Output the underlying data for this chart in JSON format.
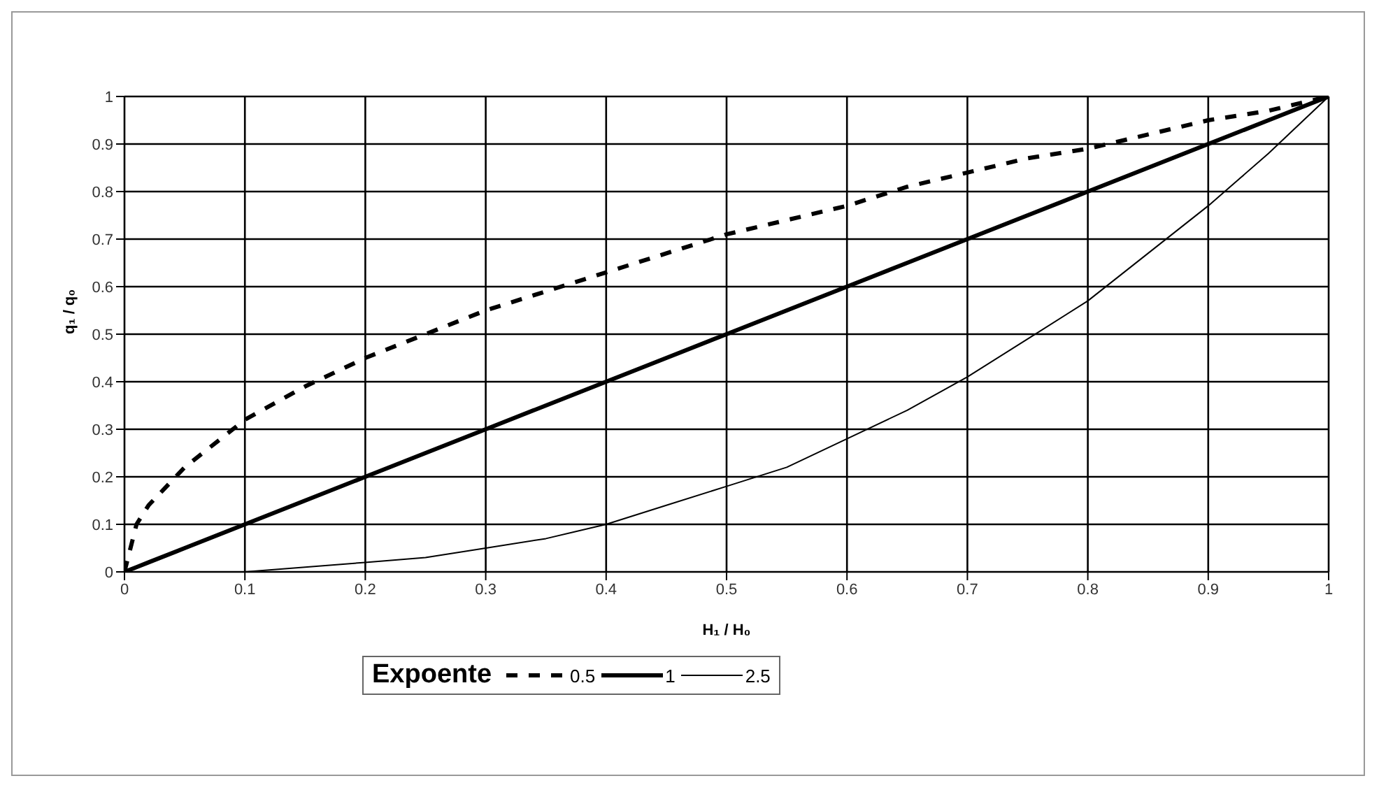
{
  "chart_data": {
    "type": "line",
    "xlabel": "H₁ / H₀",
    "ylabel": "q₁ / q₀",
    "legend_title": "Expoente",
    "legend": "bottom",
    "grid": true,
    "marker": "none",
    "x": [
      0,
      0.01,
      0.02,
      0.05,
      0.1,
      0.15,
      0.2,
      0.25,
      0.3,
      0.35,
      0.4,
      0.45,
      0.5,
      0.55,
      0.6,
      0.65,
      0.7,
      0.75,
      0.8,
      0.85,
      0.9,
      0.95,
      1
    ],
    "xlim": [
      0,
      1
    ],
    "xticks": [
      0,
      0.1,
      0.2,
      0.3,
      0.4,
      0.5,
      0.6,
      0.7,
      0.8,
      0.9,
      1
    ],
    "ylim": [
      0,
      1
    ],
    "yticks": [
      0,
      0.1,
      0.2,
      0.3,
      0.4,
      0.5,
      0.6,
      0.7,
      0.8,
      0.9,
      1
    ],
    "series": [
      {
        "name": "0.5",
        "color": "#000000",
        "line_style": "dashed",
        "values": [
          0,
          0.1,
          0.14,
          0.22,
          0.32,
          0.39,
          0.45,
          0.5,
          0.55,
          0.59,
          0.63,
          0.67,
          0.71,
          0.74,
          0.77,
          0.81,
          0.84,
          0.87,
          0.89,
          0.92,
          0.95,
          0.97,
          1
        ]
      },
      {
        "name": "1",
        "color": "#000000",
        "line_style": "solid",
        "values": [
          0,
          0.01,
          0.02,
          0.05,
          0.1,
          0.15,
          0.2,
          0.25,
          0.3,
          0.35,
          0.4,
          0.45,
          0.5,
          0.55,
          0.6,
          0.65,
          0.7,
          0.75,
          0.8,
          0.85,
          0.9,
          0.95,
          1
        ]
      },
      {
        "name": "2.5",
        "color": "#000000",
        "line_style": "solid",
        "values": [
          0,
          0,
          0,
          0,
          0,
          0.01,
          0.02,
          0.03,
          0.05,
          0.07,
          0.1,
          0.14,
          0.18,
          0.22,
          0.28,
          0.34,
          0.41,
          0.49,
          0.57,
          0.67,
          0.77,
          0.88,
          1
        ]
      }
    ]
  }
}
